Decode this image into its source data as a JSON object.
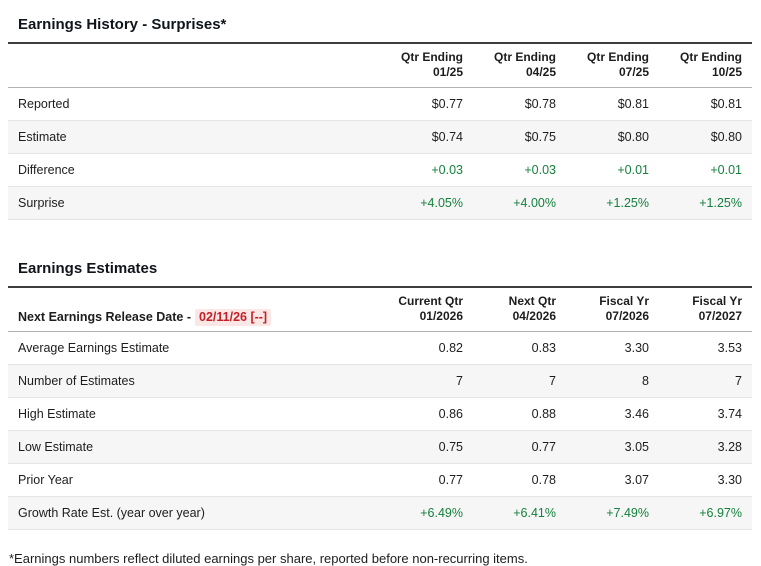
{
  "history": {
    "title": "Earnings History - Surprises*",
    "col_headers": [
      {
        "line1": "Qtr Ending",
        "line2": "01/25"
      },
      {
        "line1": "Qtr Ending",
        "line2": "04/25"
      },
      {
        "line1": "Qtr Ending",
        "line2": "07/25"
      },
      {
        "line1": "Qtr Ending",
        "line2": "10/25"
      }
    ],
    "rows": [
      {
        "label": "Reported",
        "values": [
          "$0.77",
          "$0.78",
          "$0.81",
          "$0.81"
        ]
      },
      {
        "label": "Estimate",
        "values": [
          "$0.74",
          "$0.75",
          "$0.80",
          "$0.80"
        ]
      },
      {
        "label": "Difference",
        "values": [
          "+0.03",
          "+0.03",
          "+0.01",
          "+0.01"
        ]
      },
      {
        "label": "Surprise",
        "values": [
          "+4.05%",
          "+4.00%",
          "+1.25%",
          "+1.25%"
        ]
      }
    ]
  },
  "estimates": {
    "title": "Earnings Estimates",
    "release_label": "Next Earnings Release Date -",
    "release_date": "02/11/26 [--]",
    "col_headers": [
      {
        "line1": "Current Qtr",
        "line2": "01/2026"
      },
      {
        "line1": "Next Qtr",
        "line2": "04/2026"
      },
      {
        "line1": "Fiscal Yr",
        "line2": "07/2026"
      },
      {
        "line1": "Fiscal Yr",
        "line2": "07/2027"
      }
    ],
    "rows": [
      {
        "label": "Average Earnings Estimate",
        "values": [
          "0.82",
          "0.83",
          "3.30",
          "3.53"
        ]
      },
      {
        "label": "Number of Estimates",
        "values": [
          "7",
          "7",
          "8",
          "7"
        ]
      },
      {
        "label": "High Estimate",
        "values": [
          "0.86",
          "0.88",
          "3.46",
          "3.74"
        ]
      },
      {
        "label": "Low Estimate",
        "values": [
          "0.75",
          "0.77",
          "3.05",
          "3.28"
        ]
      },
      {
        "label": "Prior Year",
        "values": [
          "0.77",
          "0.78",
          "3.07",
          "3.30"
        ]
      },
      {
        "label": "Growth Rate Est. (year over year)",
        "values": [
          "+6.49%",
          "+6.41%",
          "+7.49%",
          "+6.97%"
        ]
      }
    ]
  },
  "footnote": "*Earnings numbers reflect diluted earnings per share, reported before non-recurring items.",
  "colors": {
    "positive_green": "#15803d",
    "alert_red": "#c22027",
    "alert_bg": "#fbe7e6",
    "row_alt_bg": "#f6f6f6",
    "title_underline": "#3d3d3d"
  },
  "chart_data": [
    {
      "type": "table",
      "title": "Earnings History - Surprises*",
      "columns": [
        "",
        "Qtr Ending 01/25",
        "Qtr Ending 04/25",
        "Qtr Ending 07/25",
        "Qtr Ending 10/25"
      ],
      "rows": [
        [
          "Reported",
          "$0.77",
          "$0.78",
          "$0.81",
          "$0.81"
        ],
        [
          "Estimate",
          "$0.74",
          "$0.75",
          "$0.80",
          "$0.80"
        ],
        [
          "Difference",
          "+0.03",
          "+0.03",
          "+0.01",
          "+0.01"
        ],
        [
          "Surprise",
          "+4.05%",
          "+4.00%",
          "+1.25%",
          "+1.25%"
        ]
      ]
    },
    {
      "type": "table",
      "title": "Earnings Estimates",
      "columns": [
        "Next Earnings Release Date - 02/11/26 [--]",
        "Current Qtr 01/2026",
        "Next Qtr 04/2026",
        "Fiscal Yr 07/2026",
        "Fiscal Yr 07/2027"
      ],
      "rows": [
        [
          "Average Earnings Estimate",
          "0.82",
          "0.83",
          "3.30",
          "3.53"
        ],
        [
          "Number of Estimates",
          "7",
          "7",
          "8",
          "7"
        ],
        [
          "High Estimate",
          "0.86",
          "0.88",
          "3.46",
          "3.74"
        ],
        [
          "Low Estimate",
          "0.75",
          "0.77",
          "3.05",
          "3.28"
        ],
        [
          "Prior Year",
          "0.77",
          "0.78",
          "3.07",
          "3.30"
        ],
        [
          "Growth Rate Est. (year over year)",
          "+6.49%",
          "+6.41%",
          "+7.49%",
          "+6.97%"
        ]
      ]
    }
  ]
}
